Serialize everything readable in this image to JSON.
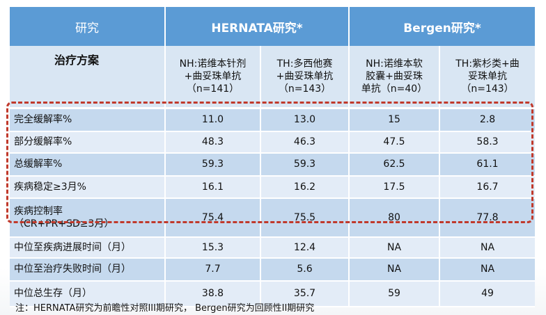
{
  "header": {
    "col_study": "研究",
    "col_hernata": "HERNATA研究*",
    "col_bergen": "Bergen研究*"
  },
  "subheader": {
    "label": "治疗方案",
    "arms": [
      [
        "NH:诺维本针剂",
        "+曲妥珠单抗",
        "（n=141）"
      ],
      [
        "TH:多西他赛",
        "+曲妥珠单抗",
        "（n=143）"
      ],
      [
        "NH:诺维本软",
        "胶囊+曲妥珠",
        "单抗（n=40）"
      ],
      [
        "TH:紫杉类+曲",
        "妥珠单抗",
        "（n=143）"
      ]
    ]
  },
  "rows": [
    {
      "label": [
        "完全缓解率%"
      ],
      "values": [
        "11.0",
        "13.0",
        "15",
        "2.8"
      ]
    },
    {
      "label": [
        "部分缓解率%"
      ],
      "values": [
        "48.3",
        "46.3",
        "47.5",
        "58.3"
      ]
    },
    {
      "label": [
        "总缓解率%"
      ],
      "values": [
        "59.3",
        "59.3",
        "62.5",
        "61.1"
      ]
    },
    {
      "label": [
        "疾病稳定≥3月%"
      ],
      "values": [
        "16.1",
        "16.2",
        "17.5",
        "16.7"
      ]
    },
    {
      "label": [
        "疾病控制率",
        "（CR+PR+SD≥3月）"
      ],
      "values": [
        "75.4",
        "75.5",
        "80",
        "77.8"
      ]
    },
    {
      "label": [
        "中位至疾病进展时间（月）"
      ],
      "values": [
        "15.3",
        "12.4",
        "NA",
        "NA"
      ]
    },
    {
      "label": [
        "中位至治疗失败时间（月）"
      ],
      "values": [
        "7.7",
        "5.6",
        "NA",
        "NA"
      ]
    },
    {
      "label": [
        "中位总生存（月）"
      ],
      "values": [
        "38.8",
        "35.7",
        "59",
        "49"
      ]
    }
  ],
  "footnote": "注：HERNATA研究为前瞻性对照III期研究， Bergen研究为回顾性II期研究",
  "colors": {
    "header": "#5b9bd5",
    "row_dark": "#c5d9ee",
    "row_light": "#e3ecf7",
    "highlight": "#c0392b"
  }
}
